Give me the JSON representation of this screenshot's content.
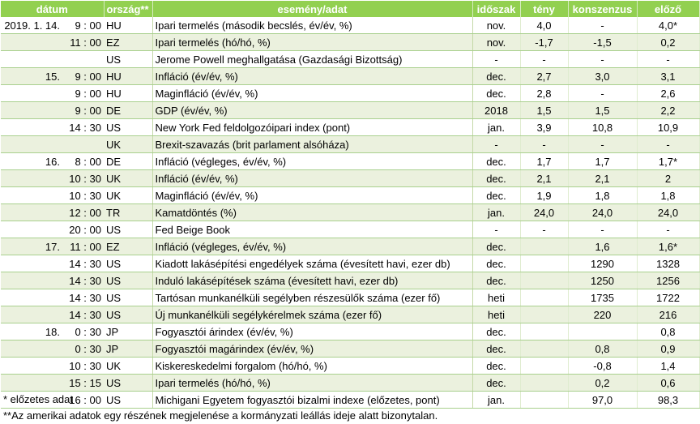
{
  "table": {
    "headers": [
      "dátum",
      "ország**",
      "esemény/adat",
      "időszak",
      "tény",
      "konszenzus",
      "előző"
    ],
    "rows": [
      {
        "date": "2019. 1. 14.",
        "time": "9 : 00",
        "country": "HU",
        "event": "Ipari termelés (második becslés, év/év, %)",
        "period": "nov.",
        "actual": "4,0",
        "consensus": "-",
        "previous": "4,0*"
      },
      {
        "date": "",
        "time": "11 : 00",
        "country": "EZ",
        "event": "Ipari termelés (hó/hó, %)",
        "period": "nov.",
        "actual": "-1,7",
        "consensus": "-1,5",
        "previous": "0,2"
      },
      {
        "date": "",
        "time": "",
        "country": "US",
        "event": "Jerome Powell meghallgatása (Gazdasági Bizottság)",
        "period": "-",
        "actual": "-",
        "consensus": "-",
        "previous": "-"
      },
      {
        "date": "15.",
        "time": "9 : 00",
        "country": "HU",
        "event": "Infláció (év/év, %)",
        "period": "dec.",
        "actual": "2,7",
        "consensus": "3,0",
        "previous": "3,1"
      },
      {
        "date": "",
        "time": "9 : 00",
        "country": "HU",
        "event": "Maginfláció (év/év, %)",
        "period": "dec.",
        "actual": "2,8",
        "consensus": "-",
        "previous": "2,6"
      },
      {
        "date": "",
        "time": "9 : 00",
        "country": "DE",
        "event": "GDP (év/év, %)",
        "period": "2018",
        "actual": "1,5",
        "consensus": "1,5",
        "previous": "2,2"
      },
      {
        "date": "",
        "time": "14 : 30",
        "country": "US",
        "event": "New York Fed feldolgozóipari index (pont)",
        "period": "jan.",
        "actual": "3,9",
        "consensus": "10,8",
        "previous": "10,9"
      },
      {
        "date": "",
        "time": "",
        "country": "UK",
        "event": "Brexit-szavazás (brit parlament alsóháza)",
        "period": "-",
        "actual": "-",
        "consensus": "-",
        "previous": "-"
      },
      {
        "date": "16.",
        "time": "8 : 00",
        "country": "DE",
        "event": "Infláció (végleges, év/év, %)",
        "period": "dec.",
        "actual": "1,7",
        "consensus": "1,7",
        "previous": "1,7*"
      },
      {
        "date": "",
        "time": "10 : 30",
        "country": "UK",
        "event": "Infláció (év/év, %)",
        "period": "dec.",
        "actual": "2,1",
        "consensus": "2,1",
        "previous": "2"
      },
      {
        "date": "",
        "time": "10 : 30",
        "country": "UK",
        "event": "Maginfláció (év/év, %)",
        "period": "dec.",
        "actual": "1,9",
        "consensus": "1,8",
        "previous": "1,8"
      },
      {
        "date": "",
        "time": "12 : 00",
        "country": "TR",
        "event": "Kamatdöntés (%)",
        "period": "jan.",
        "actual": "24,0",
        "consensus": "24,0",
        "previous": "24,0"
      },
      {
        "date": "",
        "time": "20 : 00",
        "country": "US",
        "event": "Fed Beige Book",
        "period": "-",
        "actual": "-",
        "consensus": "-",
        "previous": "-"
      },
      {
        "date": "17.",
        "time": "11 : 00",
        "country": "EZ",
        "event": "Infláció (végleges, év/év, %)",
        "period": "dec.",
        "actual": "",
        "consensus": "1,6",
        "previous": "1,6*"
      },
      {
        "date": "",
        "time": "14 : 30",
        "country": "US",
        "event": "Kiadott lakásépítési engedélyek száma (évesített havi, ezer db)",
        "period": "dec.",
        "actual": "",
        "consensus": "1290",
        "previous": "1328"
      },
      {
        "date": "",
        "time": "14 : 30",
        "country": "US",
        "event": "Induló lakásépítések száma (évesített havi, ezer db)",
        "period": "dec.",
        "actual": "",
        "consensus": "1250",
        "previous": "1256"
      },
      {
        "date": "",
        "time": "14 : 30",
        "country": "US",
        "event": "Tartósan munkanélküli segélyben részesülők száma (ezer fő)",
        "period": "heti",
        "actual": "",
        "consensus": "1735",
        "previous": "1722"
      },
      {
        "date": "",
        "time": "14 : 30",
        "country": "US",
        "event": "Új munkanélküli segélykérelmek száma (ezer fő)",
        "period": "heti",
        "actual": "",
        "consensus": "220",
        "previous": "216"
      },
      {
        "date": "18.",
        "time": "0 : 30",
        "country": "JP",
        "event": "Fogyasztói árindex (év/év, %)",
        "period": "dec.",
        "actual": "",
        "consensus": "",
        "previous": "0,8"
      },
      {
        "date": "",
        "time": "0 : 30",
        "country": "JP",
        "event": "Fogyasztói magárindex (év/év, %)",
        "period": "dec.",
        "actual": "",
        "consensus": "0,8",
        "previous": "0,9"
      },
      {
        "date": "",
        "time": "10 : 30",
        "country": "UK",
        "event": "Kiskereskedelmi forgalom (hó/hó, %)",
        "period": "dec.",
        "actual": "",
        "consensus": "-0,8",
        "previous": "1,4"
      },
      {
        "date": "",
        "time": "15 : 15",
        "country": "US",
        "event": "Ipari termelés (hó/hó, %)",
        "period": "dec.",
        "actual": "",
        "consensus": "0,2",
        "previous": "0,6"
      },
      {
        "date": "",
        "time": "16 : 00",
        "country": "US",
        "event": "Michigani Egyetem fogyasztói bizalmi indexe (előzetes, pont)",
        "period": "jan.",
        "actual": "",
        "consensus": "97,0",
        "previous": "98,3"
      }
    ]
  },
  "footnotes": [
    "* előzetes adat",
    "**Az amerikai adatok egy részének megjelenése a kormányzati leállás ideje alatt bizonytalan."
  ]
}
